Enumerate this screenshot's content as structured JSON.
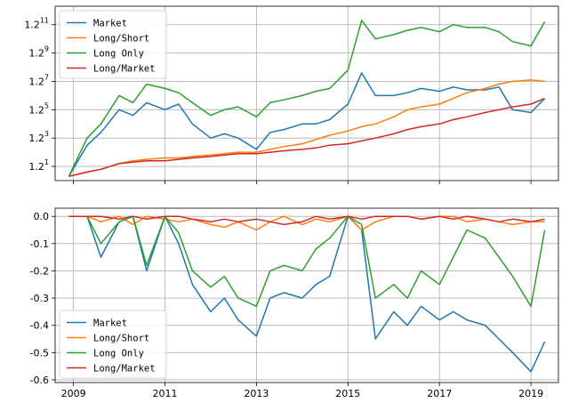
{
  "chart_data": [
    {
      "type": "line",
      "yscale": "log",
      "log_base": 1.2,
      "ylim_exponent": [
        0,
        12.3
      ],
      "xlim": [
        2008.6,
        2019.6
      ],
      "grid": true,
      "legend_position": "upper-left",
      "colors": {
        "Market": "#1f77b4",
        "Long/Short": "#ff7f0e",
        "Long Only": "#2ca02c",
        "Long/Market": "#d62728"
      },
      "x_ticks": [
        2009,
        2011,
        2013,
        2015,
        2017,
        2019
      ],
      "y_ticks": [
        {
          "exp": 1,
          "base": "1.2",
          "sup": "1"
        },
        {
          "exp": 3,
          "base": "1.2",
          "sup": "3"
        },
        {
          "exp": 5,
          "base": "1.2",
          "sup": "5"
        },
        {
          "exp": 7,
          "base": "1.2",
          "sup": "7"
        },
        {
          "exp": 9,
          "base": "1.2",
          "sup": "9"
        },
        {
          "exp": 11,
          "base": "1.2",
          "sup": "11"
        }
      ],
      "x": [
        2008.9,
        2009.3,
        2009.6,
        2010.0,
        2010.3,
        2010.6,
        2011.0,
        2011.3,
        2011.6,
        2012.0,
        2012.3,
        2012.6,
        2013.0,
        2013.3,
        2013.6,
        2014.0,
        2014.3,
        2014.6,
        2015.0,
        2015.3,
        2015.6,
        2016.0,
        2016.3,
        2016.6,
        2017.0,
        2017.3,
        2017.6,
        2018.0,
        2018.3,
        2018.6,
        2019.0,
        2019.3
      ],
      "series": [
        {
          "name": "Market",
          "exp_values": [
            0.3,
            2.5,
            3.4,
            5.0,
            4.6,
            5.5,
            5.0,
            5.4,
            4.0,
            3.0,
            3.3,
            3.0,
            2.2,
            3.4,
            3.6,
            4.0,
            4.0,
            4.3,
            5.4,
            7.6,
            6.0,
            6.0,
            6.2,
            6.5,
            6.3,
            6.6,
            6.4,
            6.4,
            6.6,
            5.0,
            4.8,
            5.8
          ]
        },
        {
          "name": "Long/Short",
          "exp_values": [
            0.3,
            0.6,
            0.8,
            1.2,
            1.4,
            1.5,
            1.6,
            1.6,
            1.7,
            1.8,
            1.9,
            2.0,
            2.0,
            2.2,
            2.4,
            2.6,
            2.9,
            3.2,
            3.5,
            3.8,
            4.0,
            4.5,
            5.0,
            5.2,
            5.4,
            5.8,
            6.2,
            6.5,
            6.8,
            7.0,
            7.1,
            7.0
          ]
        },
        {
          "name": "Long Only",
          "exp_values": [
            0.3,
            3.0,
            4.0,
            6.0,
            5.5,
            6.8,
            6.5,
            6.2,
            5.5,
            4.6,
            5.0,
            5.2,
            4.5,
            5.5,
            5.7,
            6.0,
            6.3,
            6.5,
            7.8,
            11.3,
            10.0,
            10.3,
            10.6,
            10.8,
            10.5,
            11.0,
            10.8,
            10.8,
            10.5,
            9.8,
            9.5,
            11.2
          ]
        },
        {
          "name": "Long/Market",
          "exp_values": [
            0.3,
            0.6,
            0.8,
            1.2,
            1.3,
            1.4,
            1.4,
            1.5,
            1.6,
            1.7,
            1.8,
            1.9,
            1.9,
            2.0,
            2.1,
            2.2,
            2.3,
            2.5,
            2.6,
            2.8,
            3.0,
            3.3,
            3.6,
            3.8,
            4.0,
            4.3,
            4.5,
            4.8,
            5.0,
            5.2,
            5.4,
            5.8
          ]
        }
      ]
    },
    {
      "type": "line",
      "ylim": [
        -0.61,
        0.03
      ],
      "xlim": [
        2008.6,
        2019.6
      ],
      "grid": true,
      "legend_position": "lower-left",
      "x_ticks": [
        2009,
        2011,
        2013,
        2015,
        2017,
        2019
      ],
      "y_ticks": [
        "0.0",
        "-0.1",
        "-0.2",
        "-0.3",
        "-0.4",
        "-0.5",
        "-0.6"
      ],
      "x": [
        2008.9,
        2009.3,
        2009.6,
        2010.0,
        2010.3,
        2010.6,
        2011.0,
        2011.3,
        2011.6,
        2012.0,
        2012.3,
        2012.6,
        2013.0,
        2013.3,
        2013.6,
        2014.0,
        2014.3,
        2014.6,
        2015.0,
        2015.3,
        2015.6,
        2016.0,
        2016.3,
        2016.6,
        2017.0,
        2017.3,
        2017.6,
        2018.0,
        2018.3,
        2018.6,
        2019.0,
        2019.3
      ],
      "series": [
        {
          "name": "Market",
          "values": [
            0.0,
            0.0,
            -0.15,
            -0.02,
            0.0,
            -0.2,
            0.0,
            -0.1,
            -0.25,
            -0.35,
            -0.3,
            -0.38,
            -0.44,
            -0.3,
            -0.28,
            -0.3,
            -0.25,
            -0.22,
            0.0,
            -0.05,
            -0.45,
            -0.35,
            -0.4,
            -0.33,
            -0.38,
            -0.35,
            -0.38,
            -0.4,
            -0.45,
            -0.5,
            -0.57,
            -0.46
          ]
        },
        {
          "name": "Long/Short",
          "values": [
            0.0,
            0.0,
            -0.02,
            0.0,
            -0.03,
            0.0,
            -0.01,
            -0.02,
            -0.01,
            -0.03,
            -0.04,
            -0.02,
            -0.05,
            -0.02,
            0.0,
            -0.03,
            -0.01,
            -0.02,
            0.0,
            -0.05,
            -0.02,
            0.0,
            0.0,
            -0.01,
            0.0,
            0.0,
            -0.02,
            -0.01,
            -0.02,
            -0.03,
            -0.02,
            -0.02
          ]
        },
        {
          "name": "Long Only",
          "values": [
            0.0,
            0.0,
            -0.1,
            -0.02,
            0.0,
            -0.18,
            0.0,
            -0.06,
            -0.2,
            -0.26,
            -0.22,
            -0.3,
            -0.33,
            -0.2,
            -0.18,
            -0.2,
            -0.12,
            -0.08,
            0.0,
            -0.03,
            -0.3,
            -0.25,
            -0.3,
            -0.2,
            -0.25,
            -0.15,
            -0.05,
            -0.08,
            -0.15,
            -0.22,
            -0.33,
            -0.05
          ]
        },
        {
          "name": "Long/Market",
          "values": [
            0.0,
            0.0,
            0.0,
            -0.01,
            0.0,
            -0.01,
            0.0,
            0.0,
            -0.01,
            -0.02,
            -0.01,
            -0.02,
            -0.01,
            -0.02,
            -0.03,
            -0.02,
            0.0,
            -0.01,
            0.0,
            -0.01,
            0.0,
            0.0,
            0.0,
            -0.01,
            0.0,
            -0.01,
            0.0,
            -0.01,
            -0.02,
            -0.01,
            -0.02,
            -0.01
          ]
        }
      ]
    }
  ]
}
